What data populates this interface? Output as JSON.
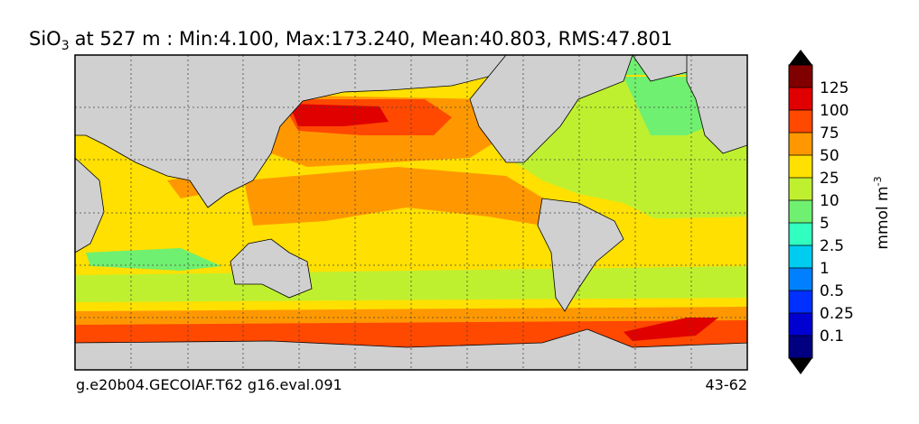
{
  "title": {
    "species": "SiO",
    "subscript": "3",
    "rest": "at 527 m : Min:4.100, Max:173.240, Mean:40.803, RMS:47.801"
  },
  "colorbar": {
    "ticks": [
      0.1,
      0.25,
      0.5,
      1,
      2.5,
      5,
      10,
      25,
      50,
      75,
      100,
      125
    ],
    "colors": [
      "#000080",
      "#0000d0",
      "#0030ff",
      "#0080ff",
      "#00ccf0",
      "#30ffc0",
      "#70f070",
      "#bff030",
      "#ffe000",
      "#ff9800",
      "#ff4800",
      "#e00000",
      "#800000"
    ],
    "unit": {
      "base": "mmol m",
      "exponent": "-3"
    }
  },
  "footer": {
    "left": "g.e20b04.GECOIAF.T62 g16.eval.091",
    "right": "43-62"
  }
}
